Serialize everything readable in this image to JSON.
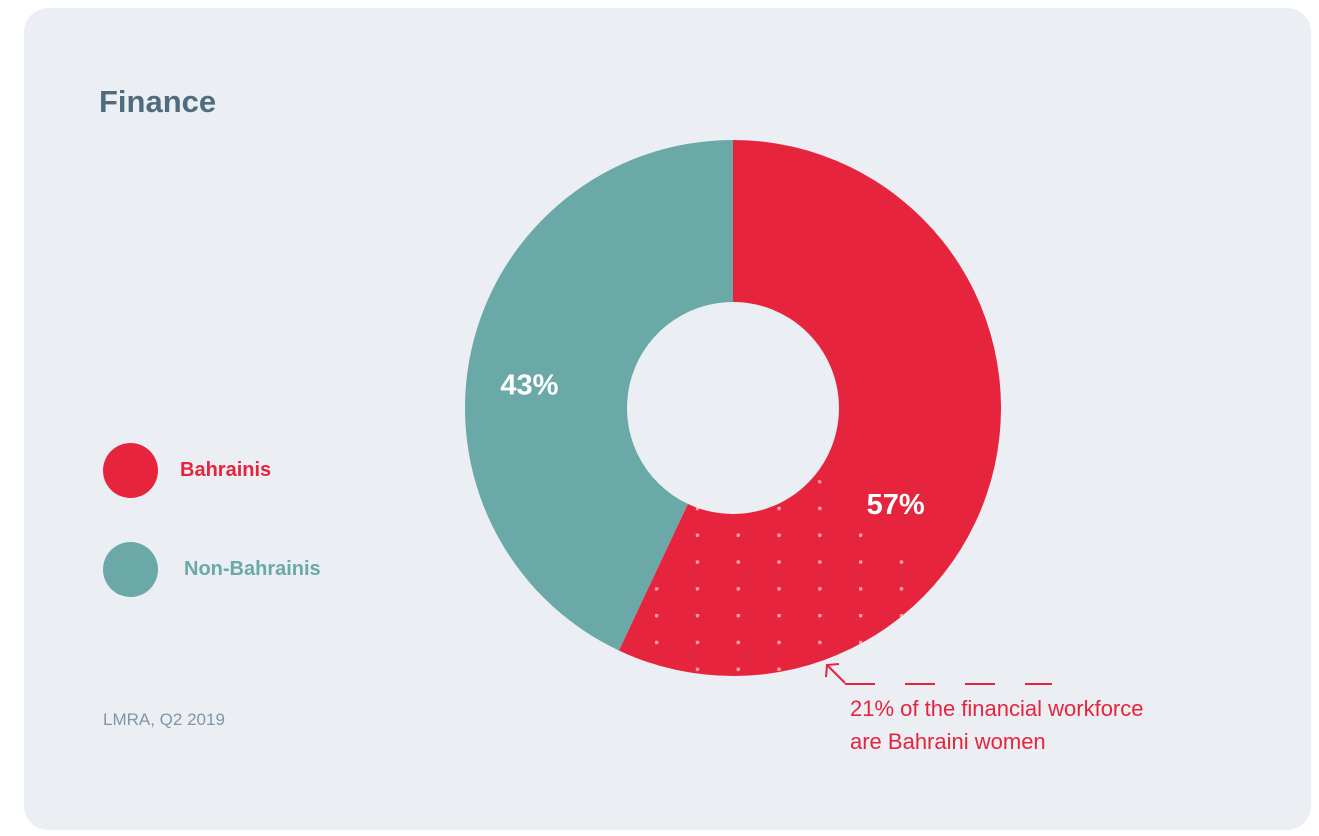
{
  "title": "Finance",
  "source": "LMRA, Q2 2019",
  "colors": {
    "bahrainis": "#e6243e",
    "non_bahrainis": "#6aa9a7",
    "card_background": "#ebeef2",
    "title": "#4f6b7e"
  },
  "legend": [
    {
      "label": "Bahrainis",
      "color": "#e6243e"
    },
    {
      "label": "Non-Bahrainis",
      "color": "#6aa9a7"
    }
  ],
  "annotation": {
    "line1": "21% of the financial workforce",
    "line2": "are Bahraini women",
    "icon": "arrow-up-left-icon"
  },
  "chart_data": {
    "type": "pie",
    "style": "donut",
    "title": "Finance",
    "categories": [
      "Bahrainis",
      "Non-Bahrainis"
    ],
    "values": [
      57,
      43
    ],
    "labels": [
      "57%",
      "43%"
    ],
    "unit": "%",
    "highlighted_portion": {
      "series": "Bahrainis",
      "value": 21,
      "pattern": "dots"
    },
    "legend_position": "left"
  }
}
